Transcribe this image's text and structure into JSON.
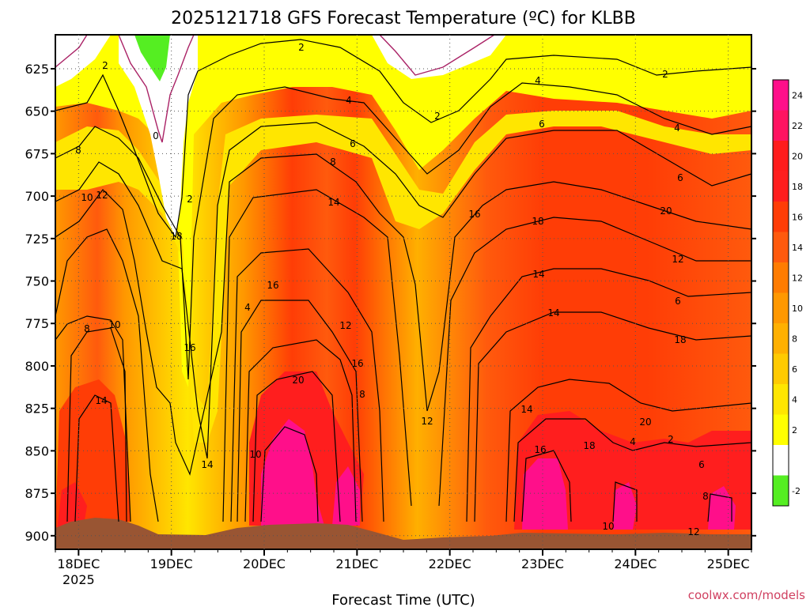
{
  "chart_data": {
    "type": "heatmap",
    "title": "2025121718 GFS Forecast Temperature (ºC) for KLBB",
    "xlabel": "Forecast Time (UTC)",
    "ylabel": "",
    "x_ticks": [
      "18DEC",
      "19DEC",
      "20DEC",
      "21DEC",
      "22DEC",
      "23DEC",
      "24DEC",
      "25DEC"
    ],
    "x_tick_sub": "2025",
    "y_ticks": [
      625,
      650,
      675,
      700,
      725,
      750,
      775,
      800,
      825,
      850,
      875,
      900
    ],
    "ylim": [
      908,
      605
    ],
    "x_range": [
      "2025-12-17 18Z",
      "2025-12-25 06Z"
    ],
    "grid": true,
    "colorbar_ticks": [
      "24",
      "22",
      "20",
      "18",
      "16",
      "14",
      "12",
      "10",
      "8",
      "6",
      "4",
      "2",
      "",
      "-2"
    ],
    "colorbar_colors": [
      "#ff0f8a",
      "#ff1361",
      "#ff1c1c",
      "#ff1e1e",
      "#ff3d06",
      "#ff5a0d",
      "#ff7c00",
      "#ff9800",
      "#ffb000",
      "#ffca00",
      "#ffe600",
      "#ffff00",
      "#ffffff",
      "#55ee22"
    ],
    "contour_levels_celsius": [
      0,
      2,
      4,
      6,
      8,
      10,
      12,
      14,
      16,
      18,
      20
    ],
    "contour_labels": [
      "2",
      "2",
      "0",
      "2",
      "4",
      "6",
      "8",
      "2",
      "4",
      "6",
      "2",
      "4",
      "6",
      "8",
      "10",
      "12",
      "14",
      "16",
      "18",
      "20",
      "12",
      "14",
      "16",
      "4",
      "6",
      "8",
      "10",
      "12",
      "14",
      "16",
      "18",
      "20",
      "8",
      "10",
      "12",
      "14",
      "16",
      "18",
      "20",
      "2",
      "4",
      "6",
      "8",
      "10",
      "12",
      "14",
      "16",
      "18",
      "14"
    ],
    "terrain_color": "#995533"
  },
  "credit": "coolwx.com/models"
}
